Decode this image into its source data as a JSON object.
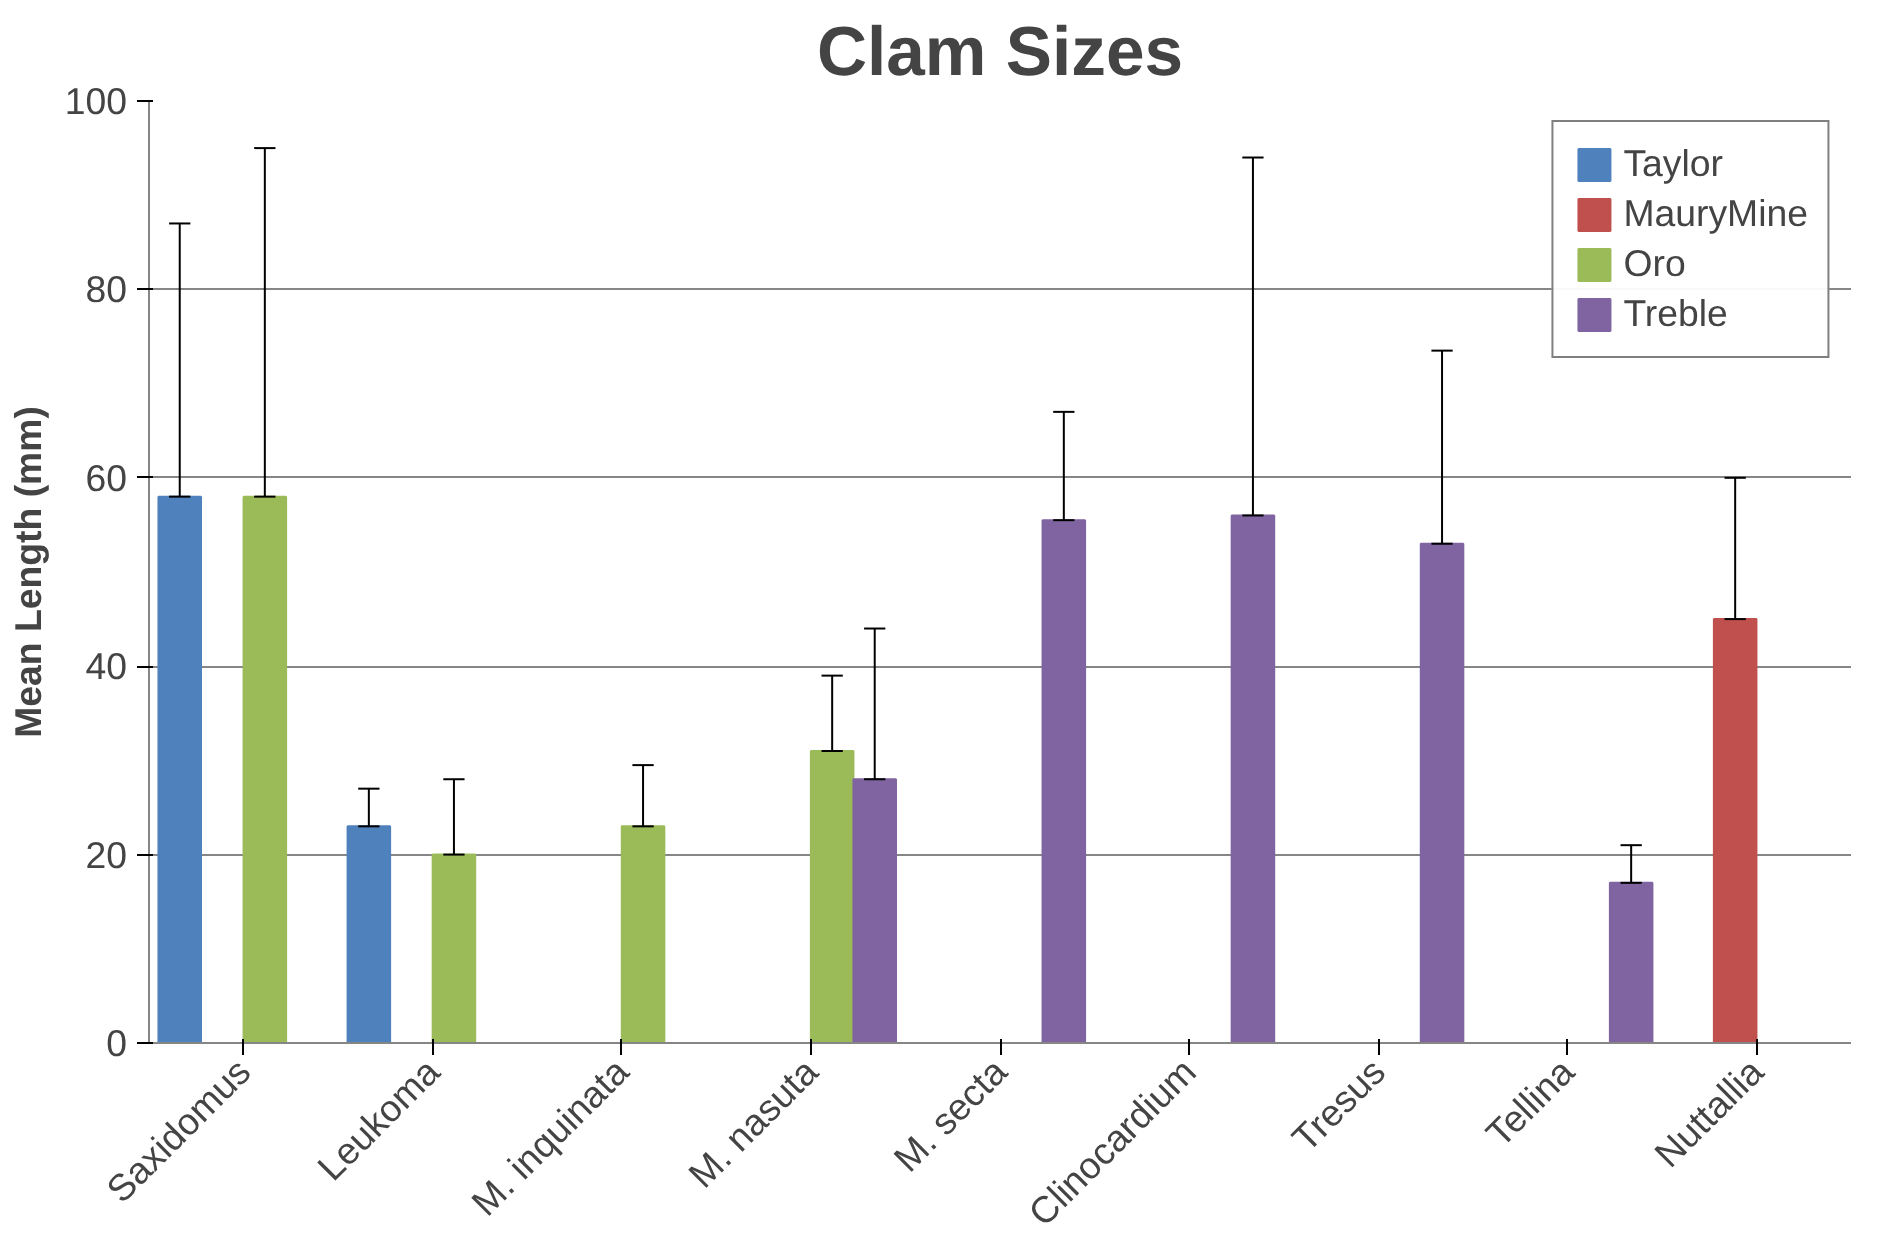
{
  "chart_data": {
    "type": "bar",
    "title": "Clam Sizes",
    "ylabel": "Mean Length (mm)",
    "categories": [
      "Saxidomus",
      "Leukoma",
      "M. inquinata",
      "M. nasuta",
      "M. secta",
      "Clinocardium",
      "Tresus",
      "Tellina",
      "Nuttallia"
    ],
    "series": [
      {
        "name": "Taylor",
        "color": "#4f81bd",
        "values": [
          58,
          23,
          null,
          null,
          null,
          null,
          null,
          null,
          null
        ],
        "errors": [
          [
            58,
            87
          ],
          [
            23,
            27
          ],
          null,
          null,
          null,
          null,
          null,
          null,
          null
        ]
      },
      {
        "name": "MauryMine",
        "color": "#c0504d",
        "values": [
          null,
          null,
          null,
          null,
          null,
          null,
          null,
          null,
          45
        ],
        "errors": [
          null,
          null,
          null,
          null,
          null,
          null,
          null,
          null,
          [
            45,
            60
          ]
        ]
      },
      {
        "name": "Oro",
        "color": "#9bbb59",
        "values": [
          58,
          20,
          23,
          31,
          null,
          null,
          null,
          null,
          null
        ],
        "errors": [
          [
            58,
            95
          ],
          [
            20,
            28
          ],
          [
            23,
            29.5
          ],
          [
            31,
            39
          ],
          null,
          null,
          null,
          null,
          null
        ]
      },
      {
        "name": "Treble",
        "color": "#8064a2",
        "values": [
          null,
          null,
          null,
          28,
          55.5,
          56,
          53,
          17,
          null
        ],
        "errors": [
          null,
          null,
          null,
          [
            28,
            44
          ],
          [
            55.5,
            67
          ],
          [
            56,
            94
          ],
          [
            53,
            73.5
          ],
          [
            17,
            21
          ],
          null
        ]
      }
    ],
    "ylim": [
      0,
      100
    ],
    "yticks": [
      0,
      20,
      40,
      60,
      80,
      100
    ],
    "grid": "y",
    "legend": "top right"
  }
}
